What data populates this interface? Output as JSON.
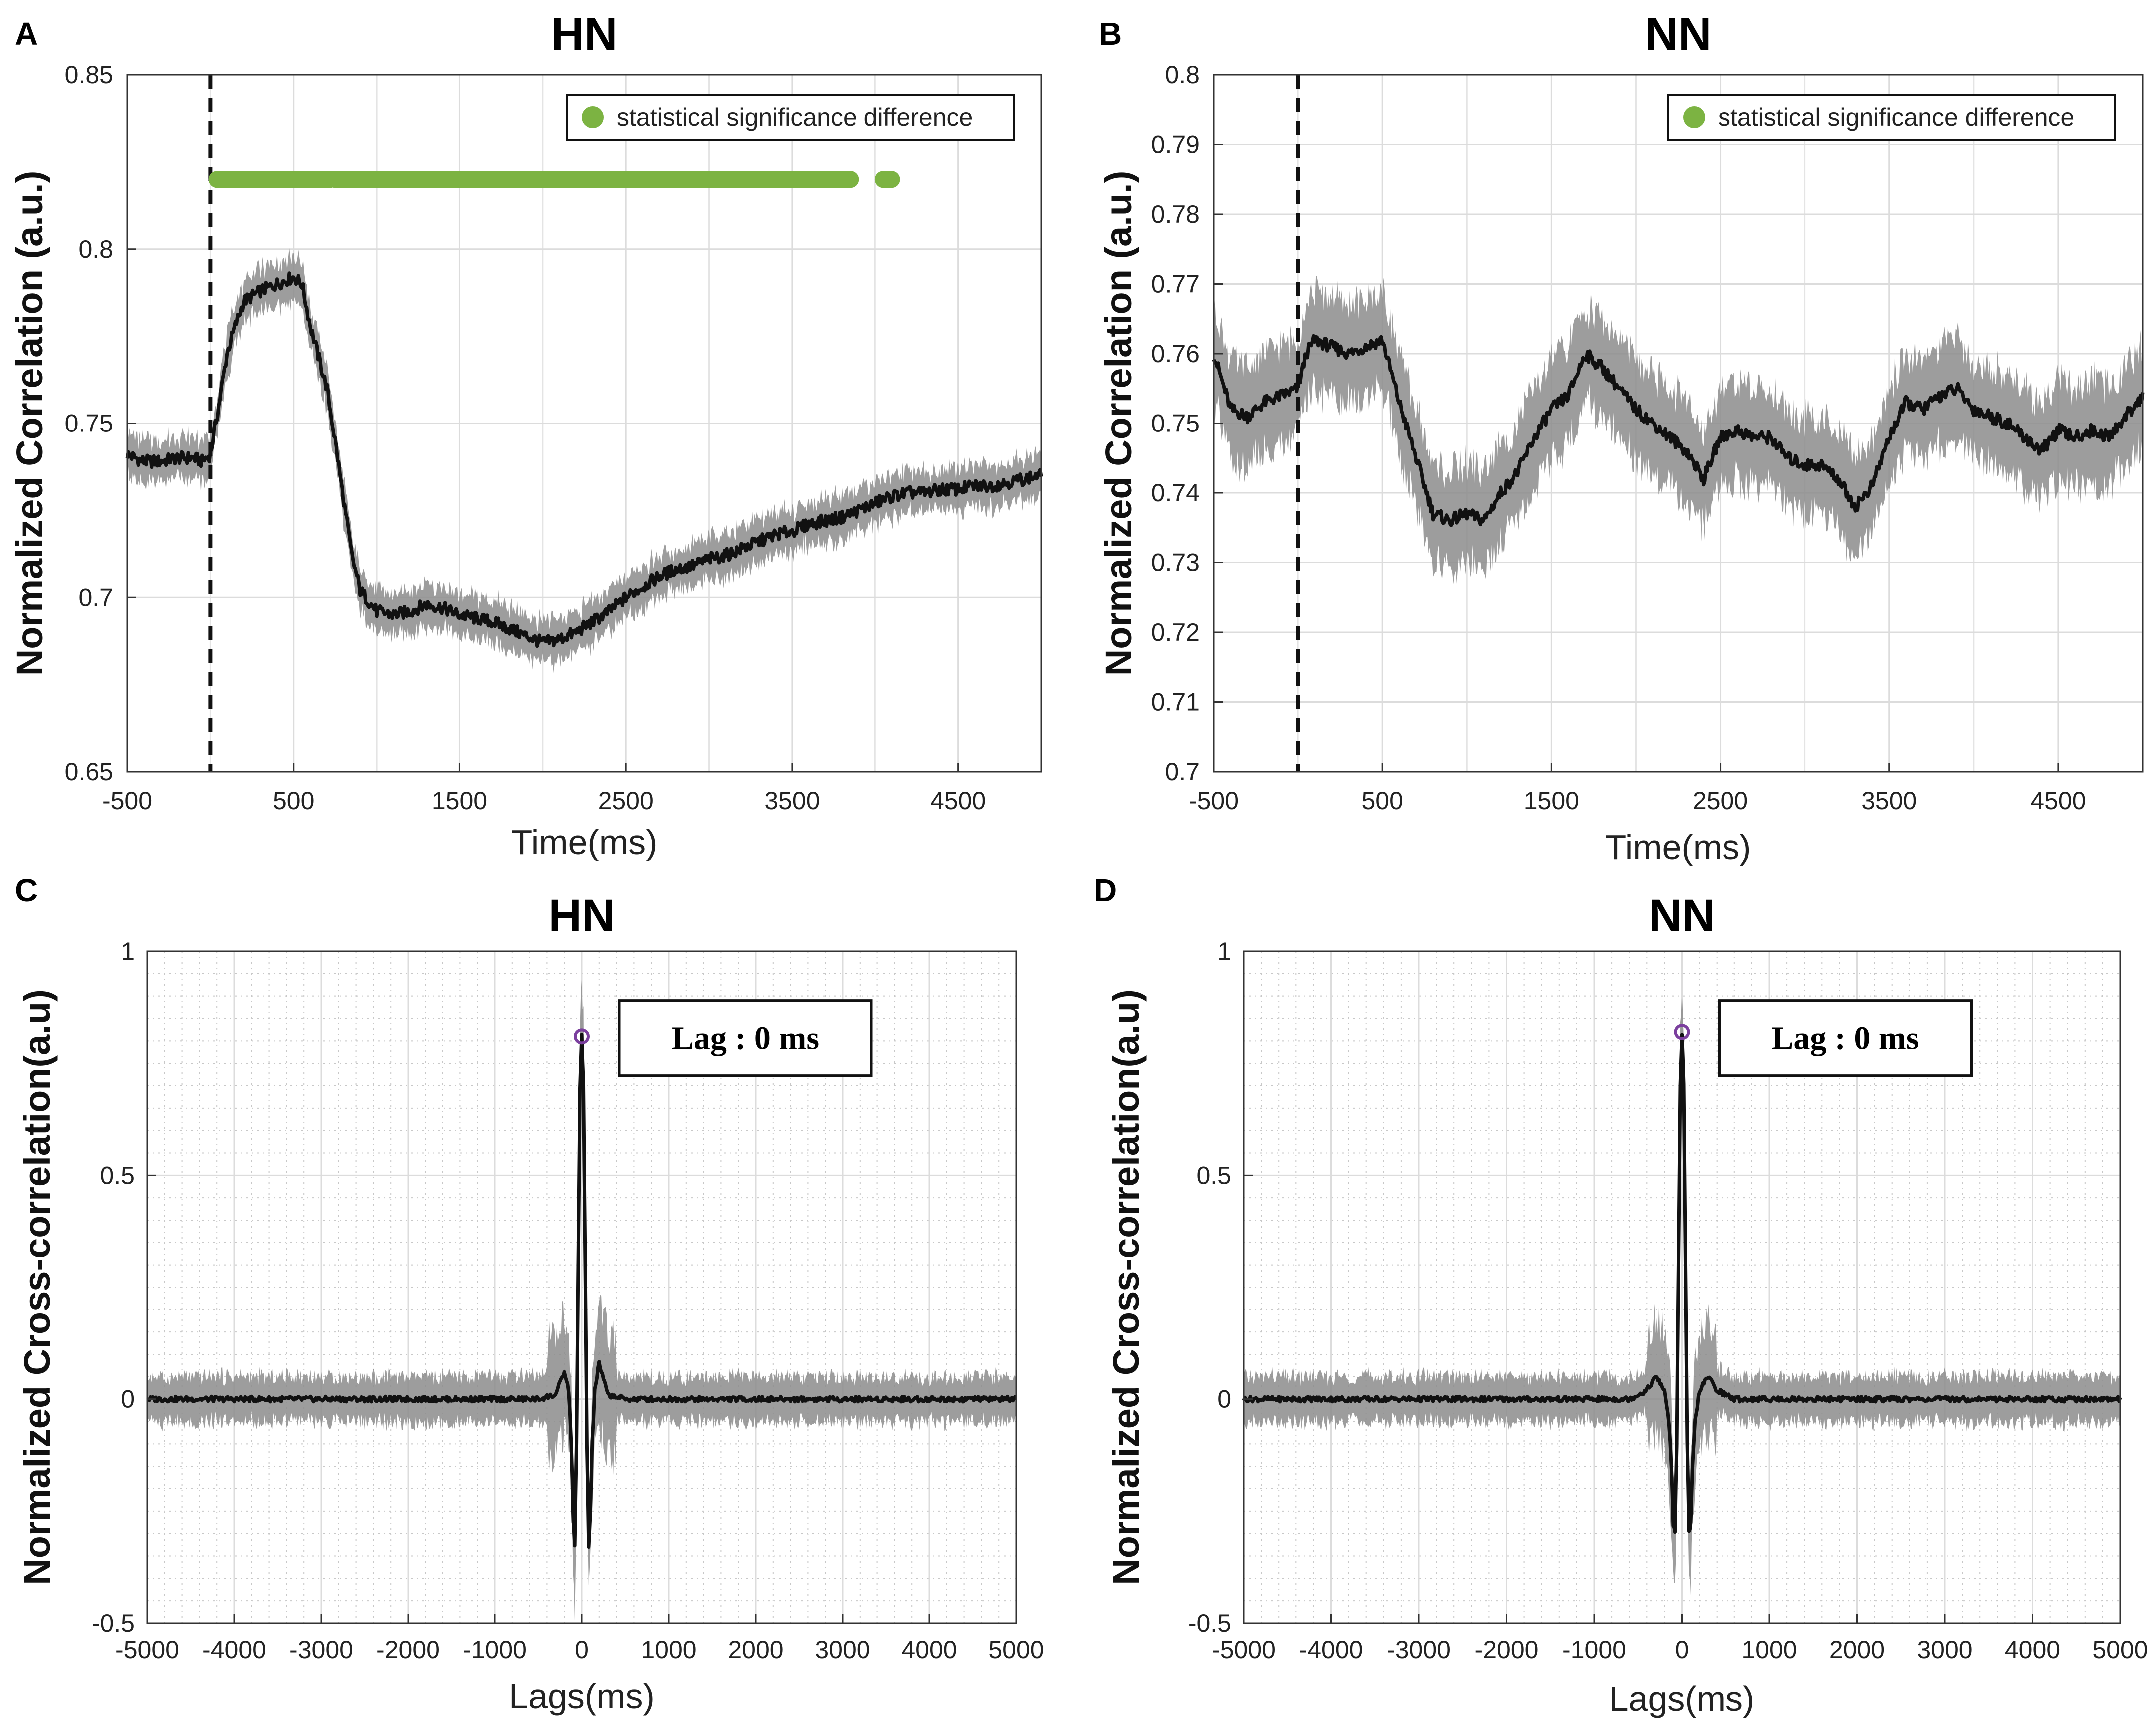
{
  "chart_data": [
    {
      "type": "line",
      "panel": "A",
      "title": "HN",
      "xlabel": "Time(ms)",
      "ylabel": "Normalized Correlation (a.u.)",
      "xlim": [
        -500,
        5000
      ],
      "ylim": [
        0.65,
        0.85
      ],
      "xticks": [
        -500,
        500,
        1500,
        2500,
        3500,
        4500
      ],
      "xtick_labels": [
        "-500",
        "500",
        "1500",
        "2500",
        "3500",
        "4500"
      ],
      "yticks": [
        0.65,
        0.7,
        0.75,
        0.8,
        0.85
      ],
      "ytick_labels": [
        "0.65",
        "0.7",
        "0.75",
        "0.8",
        "0.85"
      ],
      "grid": "major",
      "vline": 0,
      "legend": {
        "label": "statistical significance difference",
        "position": "top-right",
        "color": "#7cb342"
      },
      "significance": {
        "y": 0.82,
        "segments": [
          [
            40,
            720
          ],
          [
            750,
            3850
          ],
          [
            4050,
            4100
          ]
        ]
      },
      "band_halfwidth": 0.006,
      "series": [
        {
          "name": "mean",
          "x": [
            -500,
            -400,
            -300,
            -200,
            -100,
            -50,
            0,
            50,
            100,
            150,
            200,
            300,
            400,
            500,
            550,
            600,
            700,
            750,
            800,
            850,
            900,
            1000,
            1100,
            1200,
            1300,
            1400,
            1500,
            1600,
            1700,
            1800,
            1900,
            2000,
            2100,
            2200,
            2300,
            2400,
            2500,
            2600,
            2700,
            2800,
            2900,
            3000,
            3100,
            3200,
            3300,
            3400,
            3500,
            3600,
            3700,
            3800,
            3900,
            4000,
            4100,
            4200,
            4300,
            4400,
            4500,
            4600,
            4700,
            4800,
            4900,
            5000
          ],
          "y": [
            0.741,
            0.739,
            0.739,
            0.74,
            0.74,
            0.739,
            0.741,
            0.755,
            0.77,
            0.778,
            0.785,
            0.788,
            0.79,
            0.792,
            0.79,
            0.778,
            0.76,
            0.745,
            0.728,
            0.712,
            0.702,
            0.696,
            0.695,
            0.696,
            0.698,
            0.697,
            0.695,
            0.694,
            0.693,
            0.691,
            0.689,
            0.687,
            0.688,
            0.69,
            0.693,
            0.696,
            0.7,
            0.703,
            0.706,
            0.708,
            0.709,
            0.711,
            0.712,
            0.714,
            0.716,
            0.718,
            0.719,
            0.721,
            0.722,
            0.723,
            0.725,
            0.727,
            0.729,
            0.73,
            0.73,
            0.731,
            0.731,
            0.732,
            0.732,
            0.733,
            0.734,
            0.735
          ]
        }
      ]
    },
    {
      "type": "line",
      "panel": "B",
      "title": "NN",
      "xlabel": "Time(ms)",
      "ylabel": "Normalized Correlation (a.u.)",
      "xlim": [
        -500,
        5000
      ],
      "ylim": [
        0.7,
        0.8
      ],
      "xticks": [
        -500,
        500,
        1500,
        2500,
        3500,
        4500
      ],
      "xtick_labels": [
        "-500",
        "500",
        "1500",
        "2500",
        "3500",
        "4500"
      ],
      "yticks": [
        0.7,
        0.71,
        0.72,
        0.73,
        0.74,
        0.75,
        0.76,
        0.77,
        0.78,
        0.79,
        0.8
      ],
      "ytick_labels": [
        "0.7",
        "0.71",
        "0.72",
        "0.73",
        "0.74",
        "0.75",
        "0.76",
        "0.77",
        "0.78",
        "0.79",
        "0.8"
      ],
      "grid": "major",
      "vline": 0,
      "legend": {
        "label": "statistical significance difference",
        "position": "top-right",
        "color": "#7cb342"
      },
      "band_halfwidth": 0.007,
      "series": [
        {
          "name": "mean",
          "x": [
            -500,
            -400,
            -300,
            -200,
            -100,
            0,
            50,
            100,
            200,
            300,
            400,
            500,
            600,
            700,
            800,
            900,
            1000,
            1100,
            1200,
            1300,
            1400,
            1500,
            1600,
            1700,
            1800,
            1900,
            2000,
            2100,
            2200,
            2300,
            2400,
            2500,
            2600,
            2700,
            2800,
            2900,
            3000,
            3100,
            3200,
            3300,
            3400,
            3500,
            3600,
            3700,
            3800,
            3900,
            4000,
            4100,
            4200,
            4300,
            4400,
            4500,
            4600,
            4700,
            4800,
            4900,
            5000
          ],
          "y": [
            0.76,
            0.752,
            0.751,
            0.753,
            0.754,
            0.755,
            0.76,
            0.762,
            0.761,
            0.76,
            0.761,
            0.762,
            0.753,
            0.745,
            0.737,
            0.736,
            0.737,
            0.736,
            0.74,
            0.743,
            0.748,
            0.752,
            0.754,
            0.76,
            0.758,
            0.755,
            0.752,
            0.75,
            0.748,
            0.746,
            0.742,
            0.748,
            0.749,
            0.748,
            0.748,
            0.745,
            0.744,
            0.744,
            0.742,
            0.738,
            0.741,
            0.748,
            0.753,
            0.752,
            0.754,
            0.755,
            0.752,
            0.751,
            0.75,
            0.748,
            0.746,
            0.749,
            0.748,
            0.749,
            0.748,
            0.751,
            0.754
          ]
        }
      ]
    },
    {
      "type": "line",
      "panel": "C",
      "title": "HN",
      "xlabel": "Lags(ms)",
      "ylabel": "Normalized Cross-correlation(a.u)",
      "xlim": [
        -5000,
        5000
      ],
      "ylim": [
        -0.5,
        1
      ],
      "xticks": [
        -5000,
        -4000,
        -3000,
        -2000,
        -1000,
        0,
        1000,
        2000,
        3000,
        4000,
        5000
      ],
      "xtick_labels": [
        "-5000",
        "-4000",
        "-3000",
        "-2000",
        "-1000",
        "0",
        "1000",
        "2000",
        "3000",
        "4000",
        "5000"
      ],
      "yticks": [
        -0.5,
        0,
        0.5,
        1
      ],
      "ytick_labels": [
        "-0.5",
        "0",
        "0.5",
        "1"
      ],
      "grid": "major+minor",
      "peak": {
        "x": 0,
        "y": 0.81,
        "color": "#7b3f9e"
      },
      "annotation": "Lag : 0 ms",
      "band_halfwidth": 0.05,
      "series": [
        {
          "name": "mean",
          "x": [
            -5000,
            -1000,
            -500,
            -300,
            -200,
            -150,
            -120,
            -100,
            -80,
            -60,
            -40,
            -20,
            0,
            20,
            40,
            60,
            80,
            100,
            120,
            150,
            200,
            300,
            500,
            1000,
            5000
          ],
          "y": [
            0.0,
            0.0,
            0.0,
            0.01,
            0.06,
            0.02,
            -0.1,
            -0.25,
            -0.33,
            -0.1,
            0.3,
            0.7,
            0.81,
            0.7,
            0.3,
            -0.1,
            -0.33,
            -0.25,
            -0.1,
            0.02,
            0.08,
            0.01,
            0.0,
            0.0,
            0.0
          ]
        }
      ]
    },
    {
      "type": "line",
      "panel": "D",
      "title": "NN",
      "xlabel": "Lags(ms)",
      "ylabel": "Normalized Cross-correlation(a.u)",
      "xlim": [
        -5000,
        5000
      ],
      "ylim": [
        -0.5,
        1
      ],
      "xticks": [
        -5000,
        -4000,
        -3000,
        -2000,
        -1000,
        0,
        1000,
        2000,
        3000,
        4000,
        5000
      ],
      "xtick_labels": [
        "-5000",
        "-4000",
        "-3000",
        "-2000",
        "-1000",
        "0",
        "1000",
        "2000",
        "3000",
        "4000",
        "5000"
      ],
      "yticks": [
        -0.5,
        0,
        0.5,
        1
      ],
      "ytick_labels": [
        "-0.5",
        "0",
        "0.5",
        "1"
      ],
      "grid": "major+minor",
      "peak": {
        "x": 0,
        "y": 0.82,
        "color": "#7b3f9e"
      },
      "annotation": "Lag : 0 ms",
      "band_halfwidth": 0.05,
      "series": [
        {
          "name": "mean",
          "x": [
            -5000,
            -1000,
            -600,
            -400,
            -300,
            -200,
            -150,
            -120,
            -100,
            -80,
            -60,
            -40,
            -20,
            0,
            20,
            40,
            60,
            80,
            100,
            120,
            150,
            200,
            300,
            400,
            600,
            1000,
            5000
          ],
          "y": [
            0.0,
            0.0,
            0.0,
            0.02,
            0.05,
            0.02,
            -0.05,
            -0.15,
            -0.28,
            -0.3,
            -0.1,
            0.3,
            0.7,
            0.82,
            0.7,
            0.3,
            -0.1,
            -0.3,
            -0.28,
            -0.15,
            -0.05,
            0.02,
            0.05,
            0.02,
            0.0,
            0.0,
            0.0
          ]
        }
      ]
    }
  ]
}
